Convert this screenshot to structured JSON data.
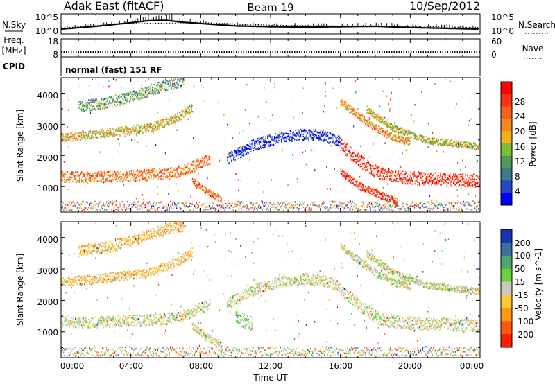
{
  "header": {
    "station": "Adak East (fitACF)",
    "beam": "Beam 19",
    "date": "10/Sep/2012"
  },
  "chart_data": [
    {
      "type": "line",
      "panel": "noise",
      "left_label": "N.Sky",
      "right_label": "N.Search",
      "left_ticks": [
        "10^5",
        "10^0"
      ],
      "right_ticks": [
        "10^5",
        "10^0"
      ],
      "series": [
        {
          "name": "N.Sky",
          "style": "solid",
          "x": [
            0,
            2,
            4,
            5,
            6,
            7,
            8,
            10,
            12,
            14,
            16,
            18,
            20,
            22,
            24
          ],
          "y": [
            1.2,
            1.9,
            2.8,
            3.3,
            3.4,
            2.9,
            2.6,
            2.0,
            1.8,
            1.7,
            1.8,
            1.9,
            1.6,
            1.4,
            1.2
          ]
        },
        {
          "name": "N.Search",
          "style": "dotted",
          "x": [
            0,
            4,
            8,
            12,
            16,
            20,
            24
          ],
          "y": [
            1.5,
            2.6,
            2.8,
            2.2,
            2.0,
            1.9,
            1.6
          ]
        }
      ],
      "ylim": [
        0,
        5
      ]
    },
    {
      "type": "line",
      "panel": "frequency",
      "left_label": "Freq.",
      "left_unit": "[MHz]",
      "right_label": "Nave",
      "left_ticks": [
        "18",
        "8"
      ],
      "right_ticks": [
        "60",
        "0"
      ],
      "series": [
        {
          "name": "Freq.",
          "style": "dotted",
          "x": [
            0,
            24
          ],
          "y": [
            10.4,
            10.4
          ]
        },
        {
          "name": "Nave",
          "style": "dotted",
          "x": [
            0,
            24
          ],
          "y": [
            11.0,
            11.0
          ]
        }
      ],
      "ylim": [
        8,
        18
      ]
    },
    {
      "type": "table",
      "panel": "cpid",
      "label": "CPID",
      "value": "normal (fast) 151 RF"
    },
    {
      "type": "heatmap",
      "panel": "power",
      "ylabel": "Slant Range [km]",
      "ylim": [
        180,
        4500
      ],
      "yticks": [
        "1000",
        "2000",
        "3000",
        "4000"
      ],
      "colorbar_label": "Power [dB]",
      "colorbar_ticks": [
        "4",
        "8",
        "12",
        "16",
        "20",
        "24",
        "28"
      ],
      "colorbar_colors": [
        "#0000ff",
        "#2a46c8",
        "#3c7a84",
        "#4e9a5a",
        "#7cbe34",
        "#f0b020",
        "#f28c20",
        "#f5621e",
        "#ff3018",
        "#ff0000"
      ],
      "echo_bands": [
        {
          "t": [
            0.0,
            1.5,
            3.0,
            5.0,
            6.5,
            7.5,
            8.5
          ],
          "r": [
            1350,
            1320,
            1350,
            1400,
            1450,
            1650,
            1900
          ],
          "w": 200,
          "level": 0.72
        },
        {
          "t": [
            0.0,
            2.0,
            3.5,
            5.0,
            6.5,
            7.5
          ],
          "r": [
            2600,
            2700,
            2800,
            2900,
            3200,
            3550
          ],
          "w": 160,
          "level": 0.55
        },
        {
          "t": [
            1.0,
            2.5,
            4.0,
            5.5,
            7.0
          ],
          "r": [
            3600,
            3700,
            3900,
            4200,
            4400
          ],
          "w": 200,
          "level": 0.35
        },
        {
          "t": [
            9.5,
            11.0,
            12.5,
            14.0,
            15.0,
            16.0
          ],
          "r": [
            1900,
            2350,
            2600,
            2700,
            2650,
            2450
          ],
          "w": 200,
          "level": 0.05
        },
        {
          "t": [
            16.0,
            17.0,
            18.0,
            19.0,
            20.5,
            22.0,
            24.0
          ],
          "r": [
            2350,
            1900,
            1500,
            1350,
            1280,
            1250,
            1200
          ],
          "w": 230,
          "level": 0.92
        },
        {
          "t": [
            16.0,
            17.0,
            18.0,
            19.0,
            20.0
          ],
          "r": [
            3750,
            3300,
            2900,
            2600,
            2450
          ],
          "w": 130,
          "level": 0.65
        },
        {
          "t": [
            17.5,
            19.0,
            21.0,
            24.0
          ],
          "r": [
            3500,
            2900,
            2500,
            2300
          ],
          "w": 120,
          "level": 0.5
        },
        {
          "t": [
            16.0,
            17.0,
            18.5,
            19.3
          ],
          "r": [
            1500,
            1050,
            700,
            500
          ],
          "w": 130,
          "level": 0.9
        },
        {
          "t": [
            7.5,
            8.5,
            9.2
          ],
          "r": [
            1200,
            800,
            600
          ],
          "w": 120,
          "level": 0.75
        }
      ]
    },
    {
      "type": "heatmap",
      "panel": "velocity",
      "ylabel": "Slant Range [km]",
      "ylim": [
        180,
        4500
      ],
      "yticks": [
        "1000",
        "2000",
        "3000",
        "4000"
      ],
      "xlabel": "Time UT",
      "xticks": [
        "00:00",
        "04:00",
        "08:00",
        "12:00",
        "16:00",
        "20:00",
        "00:00"
      ],
      "xlim": [
        0,
        24
      ],
      "colorbar_label": "Velocity [m s^-1]",
      "colorbar_ticks": [
        "200",
        "100",
        "50",
        "15",
        "-15",
        "-50",
        "-100",
        "-200"
      ],
      "colorbar_colors": [
        "#1a32b4",
        "#3c6ea0",
        "#4ca86a",
        "#68d23c",
        "#c8c8c0",
        "#ffc832",
        "#ff9614",
        "#ff5a0a",
        "#ff1e00"
      ],
      "echo_bands": [
        {
          "t": [
            0.0,
            1.5,
            3.0,
            5.0,
            6.5,
            7.5,
            8.5
          ],
          "r": [
            1350,
            1320,
            1350,
            1400,
            1450,
            1650,
            1900
          ],
          "w": 200,
          "level": 0.5
        },
        {
          "t": [
            0.0,
            2.0,
            3.5,
            5.0,
            6.5,
            7.5
          ],
          "r": [
            2600,
            2700,
            2800,
            2900,
            3200,
            3550
          ],
          "w": 160,
          "level": 0.62
        },
        {
          "t": [
            1.0,
            2.5,
            4.0,
            5.5,
            7.0
          ],
          "r": [
            3600,
            3700,
            3900,
            4200,
            4400
          ],
          "w": 200,
          "level": 0.65
        },
        {
          "t": [
            9.5,
            11.0,
            12.5,
            14.0,
            15.0,
            16.0
          ],
          "r": [
            1900,
            2350,
            2600,
            2700,
            2650,
            2450
          ],
          "w": 200,
          "level": 0.5
        },
        {
          "t": [
            16.0,
            17.0,
            18.0,
            19.0,
            20.5,
            22.0,
            24.0
          ],
          "r": [
            2350,
            1900,
            1500,
            1350,
            1280,
            1250,
            1200
          ],
          "w": 230,
          "level": 0.5
        },
        {
          "t": [
            16.0,
            17.0,
            18.0,
            19.0,
            20.0
          ],
          "r": [
            3750,
            3300,
            2900,
            2600,
            2450
          ],
          "w": 130,
          "level": 0.5
        },
        {
          "t": [
            17.5,
            19.0,
            21.0,
            24.0
          ],
          "r": [
            3500,
            2900,
            2500,
            2300
          ],
          "w": 120,
          "level": 0.5
        },
        {
          "t": [
            10.0,
            10.5,
            11.0
          ],
          "r": [
            1500,
            1350,
            1250
          ],
          "w": 260,
          "level": 0.38
        },
        {
          "t": [
            7.5,
            8.5,
            9.2
          ],
          "r": [
            1200,
            800,
            600
          ],
          "w": 120,
          "level": 0.5
        }
      ]
    }
  ]
}
